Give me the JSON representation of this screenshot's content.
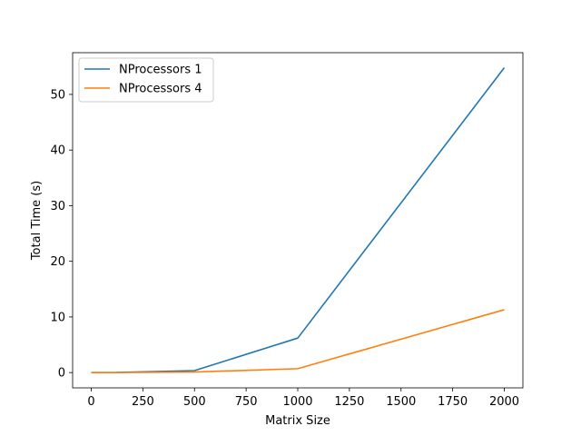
{
  "chart_data": {
    "type": "line",
    "title": "",
    "xlabel": "Matrix Size",
    "ylabel": "Total Time (s)",
    "xlim": [
      -90,
      2090
    ],
    "ylim": [
      -2.75,
      57.5
    ],
    "xticks": [
      0,
      250,
      500,
      750,
      1000,
      1250,
      1500,
      1750,
      2000
    ],
    "yticks": [
      0,
      10,
      20,
      30,
      40,
      50
    ],
    "grid": false,
    "legend_position": "top-left",
    "series": [
      {
        "name": "NProcessors 1",
        "color": "#1f77b4",
        "x": [
          0,
          100,
          500,
          1000,
          2000
        ],
        "y": [
          0.0,
          0.0,
          0.35,
          6.2,
          54.8
        ]
      },
      {
        "name": "NProcessors 4",
        "color": "#ff7f0e",
        "x": [
          0,
          100,
          500,
          1000,
          2000
        ],
        "y": [
          0.0,
          0.0,
          0.1,
          0.7,
          11.3
        ]
      }
    ]
  }
}
